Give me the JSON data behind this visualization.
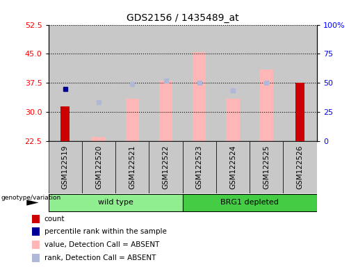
{
  "title": "GDS2156 / 1435489_at",
  "samples": [
    "GSM122519",
    "GSM122520",
    "GSM122521",
    "GSM122522",
    "GSM122523",
    "GSM122524",
    "GSM122525",
    "GSM122526"
  ],
  "ylim_left": [
    22.5,
    52.5
  ],
  "ylim_right": [
    0,
    100
  ],
  "yticks_left": [
    22.5,
    30,
    37.5,
    45,
    52.5
  ],
  "yticks_right": [
    0,
    25,
    50,
    75,
    100
  ],
  "ytick_labels_right": [
    "0",
    "25",
    "50",
    "75",
    "100%"
  ],
  "count_values": [
    31.5,
    null,
    null,
    null,
    null,
    null,
    null,
    37.5
  ],
  "pct_rank_values": [
    36.0,
    null,
    null,
    null,
    null,
    null,
    null,
    null
  ],
  "value_absent": [
    null,
    23.5,
    33.5,
    38.0,
    45.5,
    33.5,
    41.0,
    null
  ],
  "rank_absent": [
    null,
    32.5,
    37.2,
    38.0,
    37.5,
    35.5,
    37.5,
    null
  ],
  "count_color": "#cc0000",
  "pct_rank_color": "#000099",
  "value_absent_color": "#ffb6b6",
  "rank_absent_color": "#b0b8d8",
  "col_bg_color": "#c8c8c8",
  "plot_bg": "#ffffff",
  "wild_type_color": "#90ee90",
  "brg1_color": "#44cc44",
  "legend_items": [
    [
      "#cc0000",
      "count"
    ],
    [
      "#000099",
      "percentile rank within the sample"
    ],
    [
      "#ffb6b6",
      "value, Detection Call = ABSENT"
    ],
    [
      "#b0b8d8",
      "rank, Detection Call = ABSENT"
    ]
  ]
}
